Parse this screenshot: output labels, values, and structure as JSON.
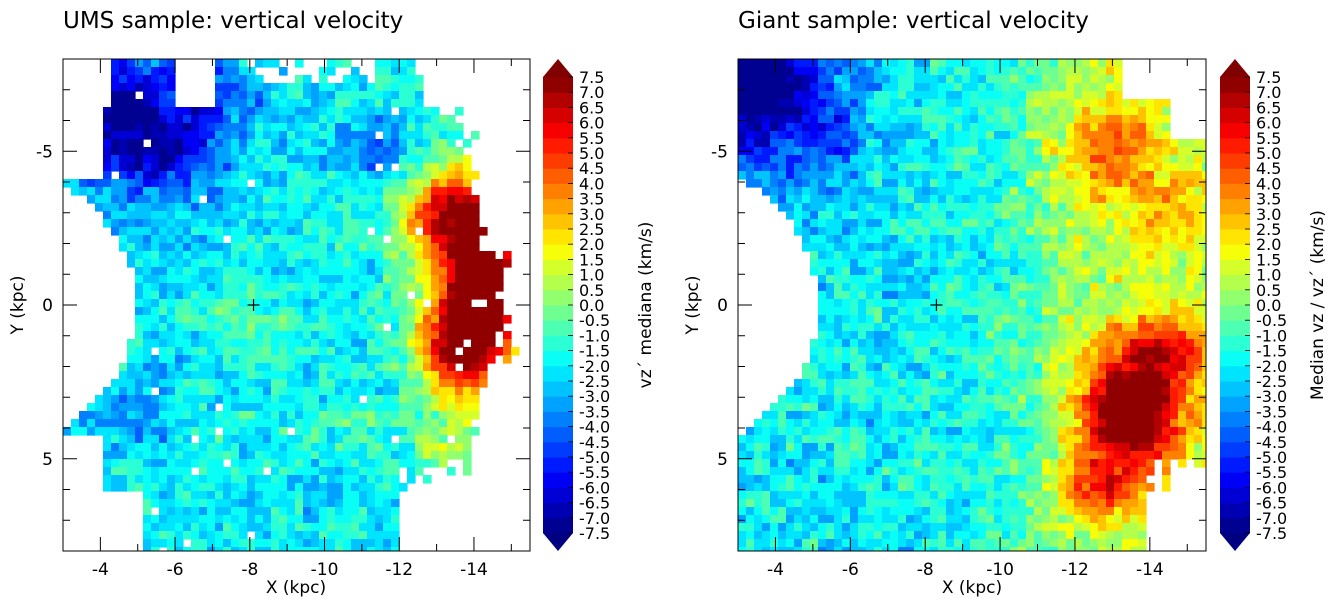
{
  "chart_data": [
    {
      "type": "heatmap",
      "title": "UMS sample: vertical velocity",
      "xlabel": "X (kpc)",
      "ylabel": "Y (kpc)",
      "xlim": [
        -3,
        -15.5
      ],
      "ylim": [
        -8,
        8
      ],
      "y_inverted": true,
      "xticks": [
        -4,
        -6,
        -8,
        -10,
        -12,
        -14
      ],
      "yticks": [
        -5,
        0,
        5
      ],
      "marker": {
        "x": -8.1,
        "y": 0,
        "symbol": "+"
      },
      "colorbar": {
        "label": "vz´ mediana (km/s)",
        "range": [
          -7.5,
          7.5
        ],
        "step": 0.5,
        "extend": "both",
        "colormap": "jet"
      },
      "field": {
        "base_value": -2.0,
        "dominant_trend": "low (-5 to -7) at upper-left, high (+4 to +7) at right edge near X=-13 to -15",
        "blobs": [
          {
            "x": -4.5,
            "y": -6.5,
            "v": -6.5
          },
          {
            "x": -5.5,
            "y": -5.0,
            "v": -5.5
          },
          {
            "x": -7.0,
            "y": -6.5,
            "v": -4.5
          },
          {
            "x": -11.5,
            "y": -5.0,
            "v": -5.5
          },
          {
            "x": -5.0,
            "y": 3.5,
            "v": -4.5
          },
          {
            "x": -8.0,
            "y": 0.5,
            "v": 0.5
          },
          {
            "x": -10.5,
            "y": 4.0,
            "v": -0.5
          },
          {
            "x": -13.5,
            "y": -3.0,
            "v": 4.5
          },
          {
            "x": -14.3,
            "y": 0.5,
            "v": 5.5
          },
          {
            "x": -13.5,
            "y": 1.5,
            "v": 6.5
          },
          {
            "x": -14.5,
            "y": -1.5,
            "v": 4.0
          },
          {
            "x": -13.0,
            "y": 4.5,
            "v": 0.5
          }
        ]
      }
    },
    {
      "type": "heatmap",
      "title": "Giant sample: vertical velocity",
      "xlabel": "X (kpc)",
      "ylabel": "Y (kpc)",
      "xlim": [
        -3,
        -15.5
      ],
      "ylim": [
        -8,
        8
      ],
      "y_inverted": true,
      "xticks": [
        -4,
        -6,
        -8,
        -10,
        -12,
        -14
      ],
      "yticks": [
        -5,
        0,
        5
      ],
      "marker": {
        "x": -8.3,
        "y": 0,
        "symbol": "+"
      },
      "colorbar": {
        "label": "Median vz / vz´  (km/s)",
        "range": [
          -7.5,
          7.5
        ],
        "step": 0.5,
        "extend": "both",
        "colormap": "jet"
      },
      "field": {
        "base_value": -2.0,
        "dominant_trend": "low (-6) at upper-left corner, rising to +1..+2 near X=-12 and +5..+6 at X=-13..-14, Y=3..5",
        "blobs": [
          {
            "x": -3.5,
            "y": -7.0,
            "v": -6.0
          },
          {
            "x": -5.5,
            "y": -5.5,
            "v": -4.0
          },
          {
            "x": -13.0,
            "y": -5.0,
            "v": 2.5
          },
          {
            "x": -14.5,
            "y": -3.0,
            "v": 1.0
          },
          {
            "x": -13.5,
            "y": 3.5,
            "v": 6.0
          },
          {
            "x": -14.5,
            "y": 1.5,
            "v": 4.5
          },
          {
            "x": -12.5,
            "y": 6.0,
            "v": 3.5
          }
        ]
      }
    }
  ],
  "colorbar_tick_labels": [
    "7.5",
    "7.0",
    "6.5",
    "6.0",
    "5.5",
    "5.0",
    "4.5",
    "4.0",
    "3.5",
    "3.0",
    "2.5",
    "2.0",
    "1.5",
    "1.0",
    "0.5",
    "0.0",
    "-0.5",
    "-1.0",
    "-1.5",
    "-2.0",
    "-2.5",
    "-3.0",
    "-3.5",
    "-4.0",
    "-4.5",
    "-5.0",
    "-5.5",
    "-6.0",
    "-6.5",
    "-7.0",
    "-7.5"
  ]
}
